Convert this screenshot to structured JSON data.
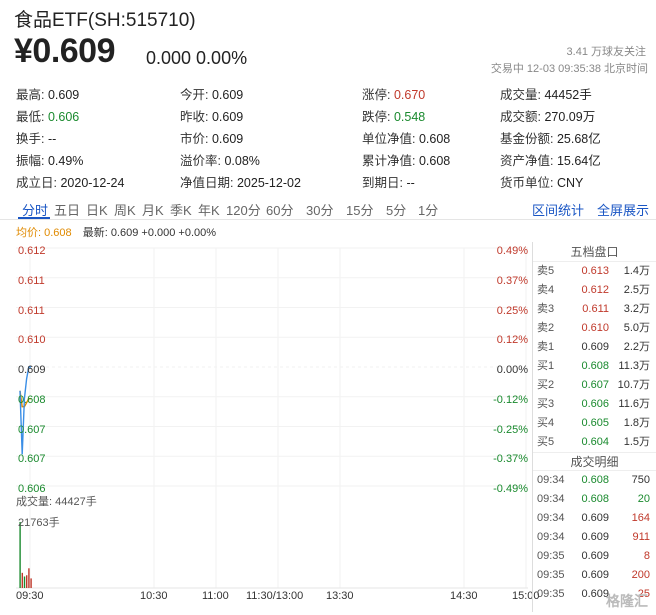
{
  "header": {
    "title": "食品ETF(SH:515710)",
    "price": "¥0.609",
    "change": "0.000 0.00%",
    "follow": "3.41 万球友关注",
    "time_info": "交易中 12-03 09:35:38 北京时间"
  },
  "quote_rows": [
    [
      [
        "最高:",
        "0.609",
        ""
      ],
      [
        "今开:",
        "0.609",
        ""
      ],
      [
        "涨停:",
        "0.670",
        "red"
      ],
      [
        "成交量:",
        "44452手",
        ""
      ]
    ],
    [
      [
        "最低:",
        "0.606",
        "green"
      ],
      [
        "昨收:",
        "0.609",
        ""
      ],
      [
        "跌停:",
        "0.548",
        "green"
      ],
      [
        "成交额:",
        "270.09万",
        ""
      ]
    ],
    [
      [
        "换手:",
        "--",
        ""
      ],
      [
        "市价:",
        "0.609",
        ""
      ],
      [
        "单位净值:",
        "0.608",
        ""
      ],
      [
        "基金份额:",
        "25.68亿",
        ""
      ]
    ],
    [
      [
        "振幅:",
        "0.49%",
        ""
      ],
      [
        "溢价率:",
        "0.08%",
        ""
      ],
      [
        "累计净值:",
        "0.608",
        ""
      ],
      [
        "资产净值:",
        "15.64亿",
        ""
      ]
    ],
    [
      [
        "成立日:",
        "2020-12-24",
        ""
      ],
      [
        "净值日期:",
        "2025-12-02",
        ""
      ],
      [
        "到期日:",
        "--",
        ""
      ],
      [
        "货币单位:",
        "CNY",
        ""
      ]
    ]
  ],
  "tabs": [
    "分时",
    "五日",
    "日K",
    "周K",
    "月K",
    "季K",
    "年K",
    "120分",
    "60分",
    "30分",
    "15分",
    "5分",
    "1分"
  ],
  "tabs_right": [
    "区间统计",
    "全屏展示"
  ],
  "legend": {
    "avg": "均价: 0.608",
    "latest": "最新: 0.609 +0.000 +0.00%"
  },
  "chart_data": {
    "type": "line",
    "title": "",
    "y_left_ticks": [
      "0.612",
      "0.611",
      "0.611",
      "0.610",
      "0.609",
      "0.608",
      "0.607",
      "0.607",
      "0.606"
    ],
    "y_right_ticks": [
      "0.49%",
      "0.37%",
      "0.25%",
      "0.12%",
      "0.00%",
      "-0.12%",
      "-0.25%",
      "-0.37%",
      "-0.49%"
    ],
    "ylim": [
      0.606,
      0.612
    ],
    "x_ticks": [
      "09:30",
      "10:30",
      "11:00",
      "11:30/13:00",
      "13:30",
      "14:30",
      "15:00"
    ],
    "series": [
      {
        "x": [
          "09:30",
          "09:31",
          "09:32",
          "09:33",
          "09:34",
          "09:35"
        ],
        "values": [
          0.6084,
          0.6068,
          0.6082,
          0.6087,
          0.609,
          0.609
        ],
        "color": "#3a8ee6"
      }
    ],
    "avg_series": {
      "x": [
        "09:30",
        "09:31",
        "09:32",
        "09:33",
        "09:34",
        "09:35"
      ],
      "values": [
        0.6084,
        0.608,
        0.608,
        0.6081,
        0.6082,
        0.6082
      ],
      "color": "#e08a00"
    },
    "volume": {
      "title": "成交量: 44427手",
      "max_label": "21763手",
      "x": [
        "09:30",
        "09:31",
        "09:32",
        "09:33",
        "09:34",
        "09:35"
      ],
      "values": [
        21763,
        5000,
        3800,
        4200,
        6500,
        3164
      ],
      "colors": [
        "#1a8a2e",
        "#c0392b",
        "#1a8a2e",
        "#c0392b",
        "#c0392b",
        "#c0392b"
      ]
    }
  },
  "orderbook": {
    "title": "五档盘口",
    "rows": [
      [
        "卖5",
        "0.613",
        "1.4万",
        "red"
      ],
      [
        "卖4",
        "0.612",
        "2.5万",
        "red"
      ],
      [
        "卖3",
        "0.611",
        "3.2万",
        "red"
      ],
      [
        "卖2",
        "0.610",
        "5.0万",
        "red"
      ],
      [
        "卖1",
        "0.609",
        "2.2万",
        ""
      ],
      [
        "买1",
        "0.608",
        "11.3万",
        "green"
      ],
      [
        "买2",
        "0.607",
        "10.7万",
        "green"
      ],
      [
        "买3",
        "0.606",
        "11.6万",
        "green"
      ],
      [
        "买4",
        "0.605",
        "1.8万",
        "green"
      ],
      [
        "买5",
        "0.604",
        "1.5万",
        "green"
      ]
    ]
  },
  "trades": {
    "title": "成交明细",
    "rows": [
      [
        "09:34",
        "0.608",
        "750",
        "green",
        ""
      ],
      [
        "09:34",
        "0.608",
        "20",
        "green",
        "green"
      ],
      [
        "09:34",
        "0.609",
        "164",
        "",
        "red"
      ],
      [
        "09:34",
        "0.609",
        "911",
        "",
        "red"
      ],
      [
        "09:35",
        "0.609",
        "8",
        "",
        "red"
      ],
      [
        "09:35",
        "0.609",
        "200",
        "",
        "red"
      ],
      [
        "09:35",
        "0.609",
        "25",
        "",
        "red"
      ]
    ]
  },
  "watermark": "格隆汇"
}
